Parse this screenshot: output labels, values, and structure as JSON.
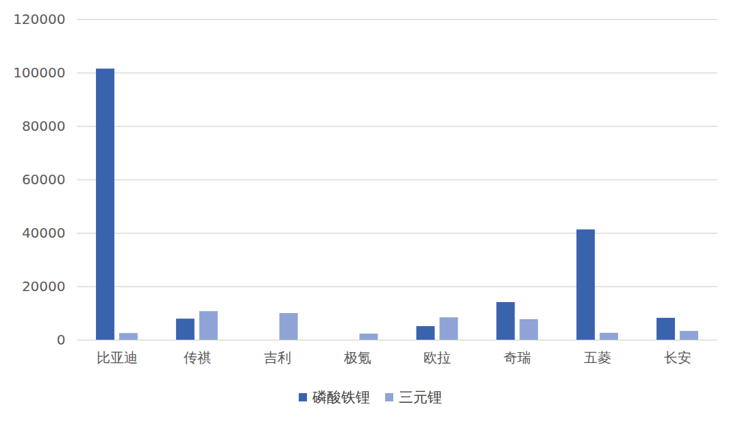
{
  "chart_data": {
    "type": "bar",
    "categories": [
      "比亚迪",
      "传祺",
      "吉利",
      "极氪",
      "欧拉",
      "奇瑞",
      "五菱",
      "长安"
    ],
    "series": [
      {
        "name": "磷酸铁锂",
        "color": "#3a63ad",
        "values": [
          101500,
          7900,
          0,
          0,
          5100,
          14100,
          41300,
          8200
        ]
      },
      {
        "name": "三元锂",
        "color": "#8fa3d6",
        "values": [
          2500,
          10700,
          10000,
          2300,
          8400,
          7700,
          2600,
          3300
        ]
      }
    ],
    "ylim": [
      0,
      120000
    ],
    "yticks": [
      0,
      20000,
      40000,
      60000,
      80000,
      100000,
      120000
    ],
    "grid": true,
    "legend": "bottom"
  }
}
